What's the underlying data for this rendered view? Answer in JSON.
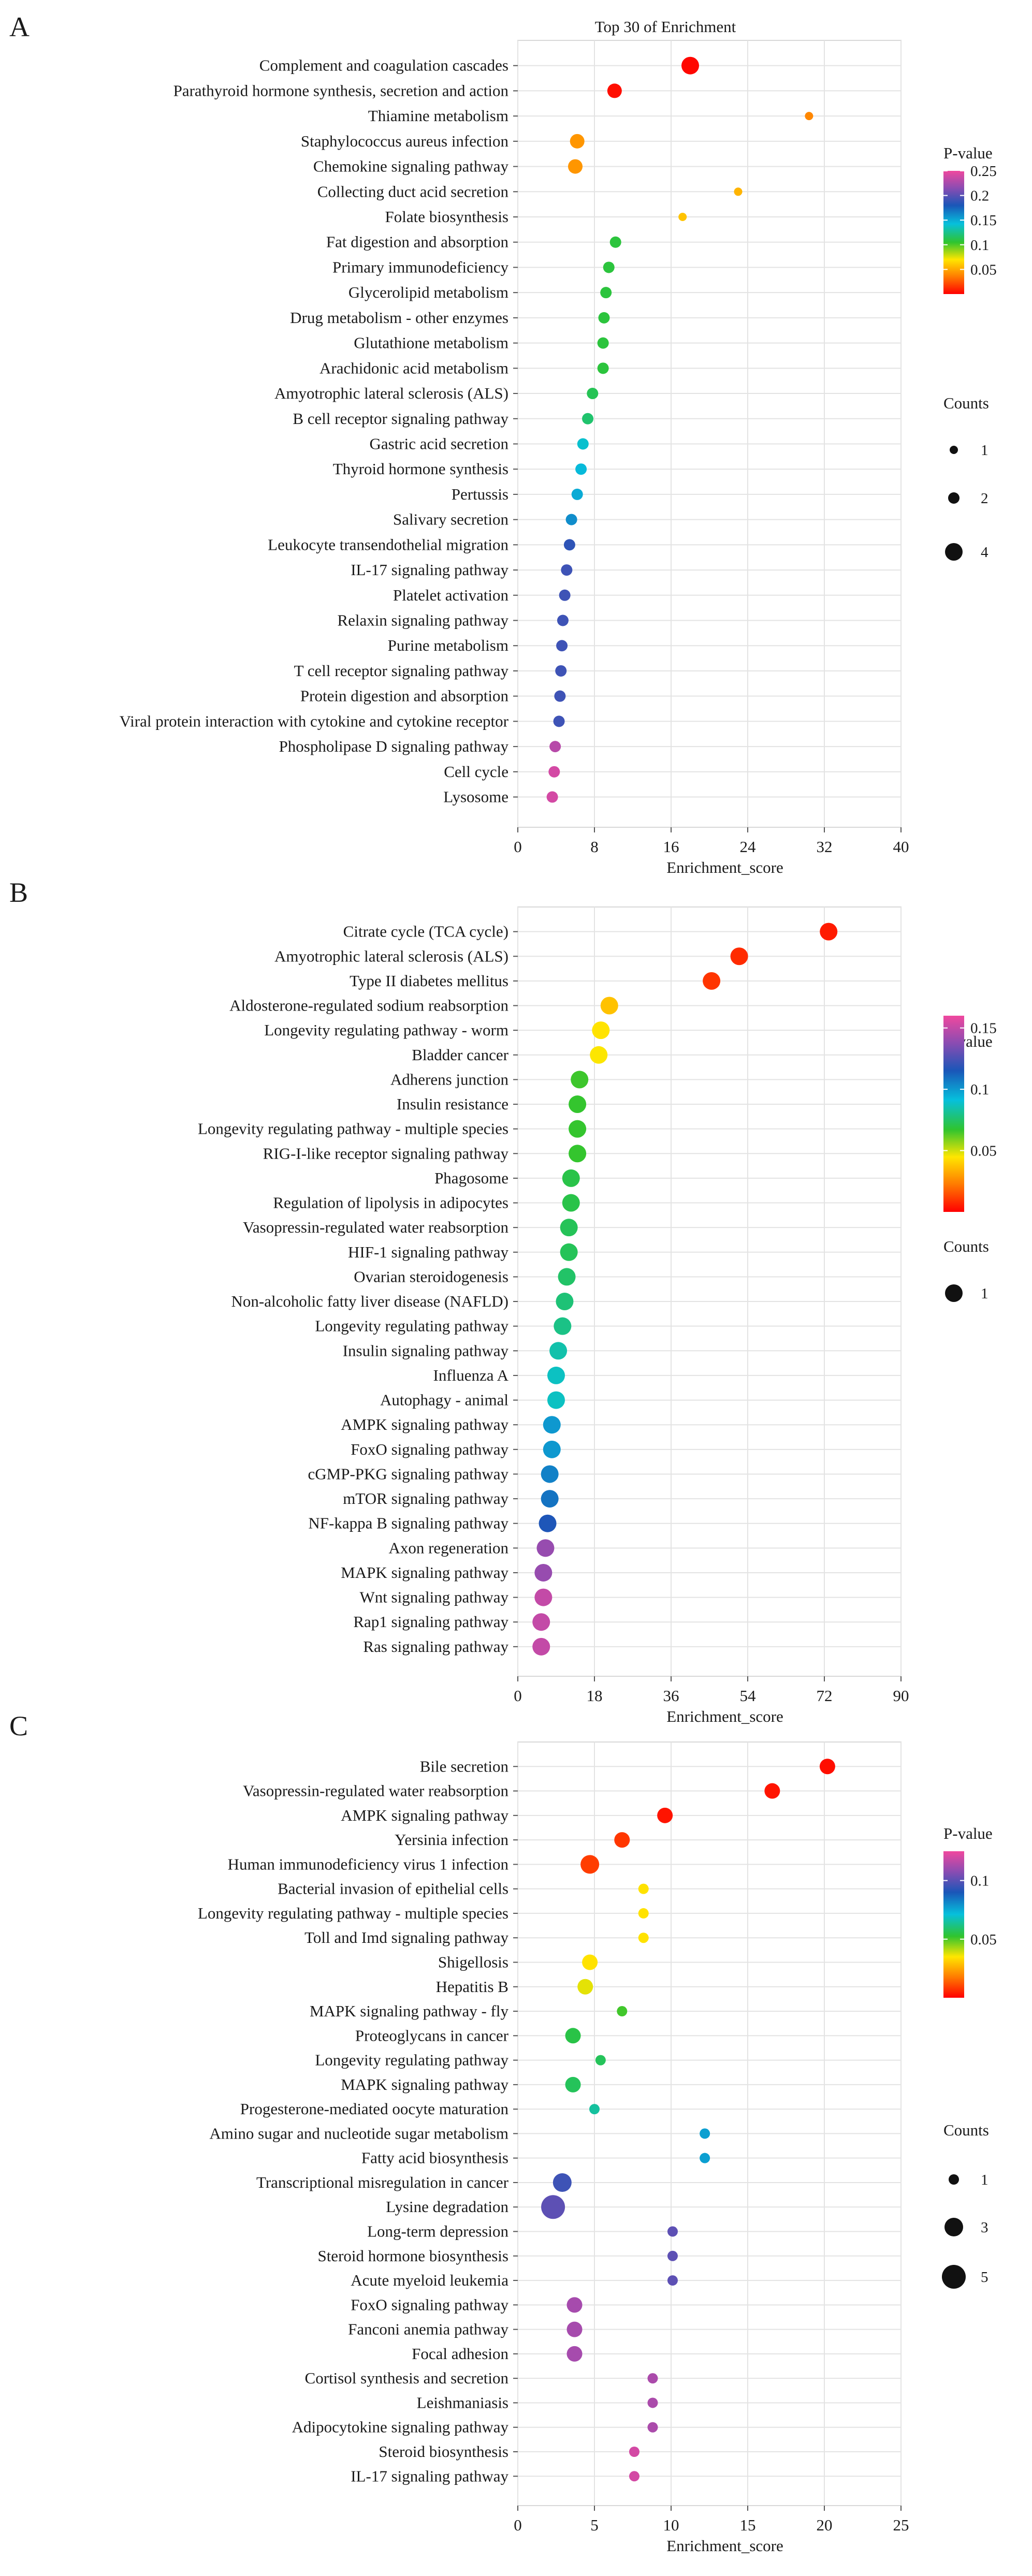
{
  "colors": {
    "scale": [
      "#ff0000",
      "#ff7a00",
      "#ffe600",
      "#2fc42f",
      "#06c0dc",
      "#1a56b8",
      "#8a4cb2",
      "#f0489e"
    ],
    "grid": "#e3e3e3",
    "frame": "#d8d8d8",
    "text": "#1a1a1a"
  },
  "chart_data": [
    {
      "type": "scatter",
      "panel_label": "A",
      "title": "Top 30 of Enrichment",
      "xlabel": "Enrichment_score",
      "ylabel": "",
      "xlim": [
        0,
        40
      ],
      "xticks": [
        0,
        8,
        16,
        24,
        32,
        40
      ],
      "grid": true,
      "legend_position": "right",
      "color_legend": {
        "title": "P-value",
        "min": 0,
        "max": 0.25,
        "ticks": [
          0.25,
          0.2,
          0.15,
          0.1,
          0.05
        ]
      },
      "size_legend": {
        "title": "Counts",
        "values": [
          1,
          2,
          4
        ]
      },
      "terms": [
        "Complement and coagulation cascades",
        "Parathyroid hormone synthesis, secretion and action",
        "Thiamine metabolism",
        "Staphylococcus aureus infection",
        "Chemokine signaling pathway",
        "Collecting duct acid secretion",
        "Folate biosynthesis",
        "Fat digestion and absorption",
        "Primary immunodeficiency",
        "Glycerolipid metabolism",
        "Drug metabolism - other enzymes",
        "Glutathione metabolism",
        "Arachidonic acid metabolism",
        "Amyotrophic lateral sclerosis (ALS)",
        "B cell receptor signaling pathway",
        "Gastric acid secretion",
        "Thyroid hormone synthesis",
        "Pertussis",
        "Salivary secretion",
        "Leukocyte transendothelial migration",
        "IL-17 signaling pathway",
        "Platelet activation",
        "Relaxin signaling pathway",
        "Purine metabolism",
        "T cell receptor signaling pathway",
        "Protein digestion and absorption",
        "Viral protein interaction with cytokine and cytokine receptor",
        "Phospholipase D signaling pathway",
        "Cell cycle",
        "Lysosome"
      ],
      "enrichment": [
        18.0,
        10.1,
        30.4,
        6.2,
        6.0,
        23.0,
        17.2,
        10.2,
        9.5,
        9.2,
        9.0,
        8.9,
        8.9,
        7.8,
        7.3,
        6.8,
        6.6,
        6.2,
        5.6,
        5.4,
        5.1,
        4.9,
        4.7,
        4.6,
        4.5,
        4.4,
        4.3,
        3.9,
        3.8,
        3.6
      ],
      "pvalue": [
        0.002,
        0.004,
        0.04,
        0.045,
        0.045,
        0.055,
        0.06,
        0.11,
        0.11,
        0.11,
        0.11,
        0.11,
        0.11,
        0.115,
        0.12,
        0.14,
        0.145,
        0.15,
        0.16,
        0.185,
        0.19,
        0.19,
        0.19,
        0.19,
        0.19,
        0.19,
        0.19,
        0.23,
        0.24,
        0.24
      ],
      "counts": [
        4,
        3,
        1,
        3,
        3,
        1,
        1,
        2,
        2,
        2,
        2,
        2,
        2,
        2,
        2,
        2,
        2,
        2,
        2,
        2,
        2,
        2,
        2,
        2,
        2,
        2,
        2,
        2,
        2,
        2
      ]
    },
    {
      "type": "scatter",
      "panel_label": "B",
      "title": "",
      "xlabel": "Enrichment_score",
      "ylabel": "",
      "xlim": [
        0,
        90
      ],
      "xticks": [
        0,
        18,
        36,
        54,
        72,
        90
      ],
      "grid": true,
      "legend_position": "right",
      "color_legend": {
        "title": "P-value",
        "min": 0,
        "max": 0.16,
        "ticks": [
          0.15,
          0.1,
          0.05
        ]
      },
      "size_legend": {
        "title": "Counts",
        "values": [
          1
        ]
      },
      "terms": [
        "Citrate cycle (TCA cycle)",
        "Amyotrophic lateral sclerosis (ALS)",
        "Type II diabetes mellitus",
        "Aldosterone-regulated sodium reabsorption",
        "Longevity regulating pathway - worm",
        "Bladder cancer",
        "Adherens junction",
        "Insulin resistance",
        "Longevity regulating pathway - multiple species",
        "RIG-I-like receptor signaling pathway",
        "Phagosome",
        "Regulation of lipolysis in adipocytes",
        "Vasopressin-regulated water reabsorption",
        "HIF-1 signaling pathway",
        "Ovarian steroidogenesis",
        "Non-alcoholic fatty liver disease (NAFLD)",
        "Longevity regulating pathway",
        "Insulin signaling pathway",
        "Influenza A",
        "Autophagy - animal",
        "AMPK signaling pathway",
        "FoxO signaling pathway",
        "cGMP-PKG signaling pathway",
        "mTOR signaling pathway",
        "NF-kappa B signaling pathway",
        "Axon regeneration",
        "MAPK signaling pathway",
        "Wnt signaling pathway",
        "Rap1 signaling pathway",
        "Ras signaling pathway"
      ],
      "enrichment": [
        73.0,
        52.0,
        45.5,
        21.5,
        19.5,
        19.0,
        14.5,
        14.0,
        14.0,
        14.0,
        12.5,
        12.5,
        12.0,
        12.0,
        11.5,
        11.0,
        10.5,
        9.5,
        9.0,
        9.0,
        8.0,
        8.0,
        7.5,
        7.5,
        7.0,
        6.5,
        6.0,
        6.0,
        5.5,
        5.5
      ],
      "pvalue": [
        0.005,
        0.008,
        0.01,
        0.038,
        0.045,
        0.046,
        0.067,
        0.068,
        0.068,
        0.068,
        0.072,
        0.072,
        0.074,
        0.074,
        0.076,
        0.078,
        0.08,
        0.085,
        0.088,
        0.088,
        0.1,
        0.1,
        0.105,
        0.108,
        0.115,
        0.14,
        0.14,
        0.15,
        0.15,
        0.15
      ],
      "counts": [
        1,
        1,
        1,
        1,
        1,
        1,
        1,
        1,
        1,
        1,
        1,
        1,
        1,
        1,
        1,
        1,
        1,
        1,
        1,
        1,
        1,
        1,
        1,
        1,
        1,
        1,
        1,
        1,
        1,
        1
      ]
    },
    {
      "type": "scatter",
      "panel_label": "C",
      "title": "",
      "xlabel": "Enrichment_score",
      "ylabel": "",
      "xlim": [
        0,
        25
      ],
      "xticks": [
        0,
        5,
        10,
        15,
        20,
        25
      ],
      "grid": true,
      "legend_position": "right",
      "color_legend": {
        "title": "P-value",
        "min": 0,
        "max": 0.125,
        "ticks": [
          0.1,
          0.05
        ]
      },
      "size_legend": {
        "title": "Counts",
        "values": [
          1,
          3,
          5
        ]
      },
      "terms": [
        "Bile secretion",
        "Vasopressin-regulated water reabsorption",
        "AMPK signaling pathway",
        "Yersinia infection",
        "Human immunodeficiency virus 1 infection",
        "Bacterial invasion of epithelial cells",
        "Longevity regulating pathway - multiple species",
        "Toll and Imd signaling pathway",
        "Shigellosis",
        "Hepatitis B",
        "MAPK signaling pathway - fly",
        "Proteoglycans in cancer",
        "Longevity regulating pathway",
        "MAPK signaling pathway",
        "Progesterone-mediated oocyte maturation",
        "Amino sugar and nucleotide sugar metabolism",
        "Fatty acid biosynthesis",
        "Transcriptional misregulation in cancer",
        "Lysine degradation",
        "Long-term depression",
        "Steroid hormone biosynthesis",
        "Acute myeloid leukemia",
        "FoxO signaling pathway",
        "Fanconi anemia pathway",
        "Focal adhesion",
        "Cortisol synthesis and secretion",
        "Leishmaniasis",
        "Adipocytokine signaling pathway",
        "Steroid biosynthesis",
        "IL-17 signaling pathway"
      ],
      "enrichment": [
        20.2,
        16.6,
        9.6,
        6.8,
        4.7,
        8.2,
        8.2,
        8.2,
        4.7,
        4.4,
        6.8,
        3.6,
        5.4,
        3.6,
        5.0,
        12.2,
        12.2,
        2.9,
        2.3,
        10.1,
        10.1,
        10.1,
        3.7,
        3.7,
        3.7,
        8.8,
        8.8,
        8.8,
        7.6,
        7.6
      ],
      "pvalue": [
        0.002,
        0.003,
        0.003,
        0.008,
        0.009,
        0.035,
        0.035,
        0.035,
        0.035,
        0.038,
        0.052,
        0.056,
        0.058,
        0.058,
        0.065,
        0.077,
        0.077,
        0.095,
        0.1,
        0.1,
        0.1,
        0.1,
        0.112,
        0.112,
        0.112,
        0.113,
        0.113,
        0.113,
        0.12,
        0.12
      ],
      "counts": [
        2,
        2,
        2,
        2,
        3,
        1,
        1,
        1,
        2,
        2,
        1,
        2,
        1,
        2,
        1,
        1,
        1,
        3,
        5,
        1,
        1,
        1,
        2,
        2,
        2,
        1,
        1,
        1,
        1,
        1
      ]
    }
  ]
}
